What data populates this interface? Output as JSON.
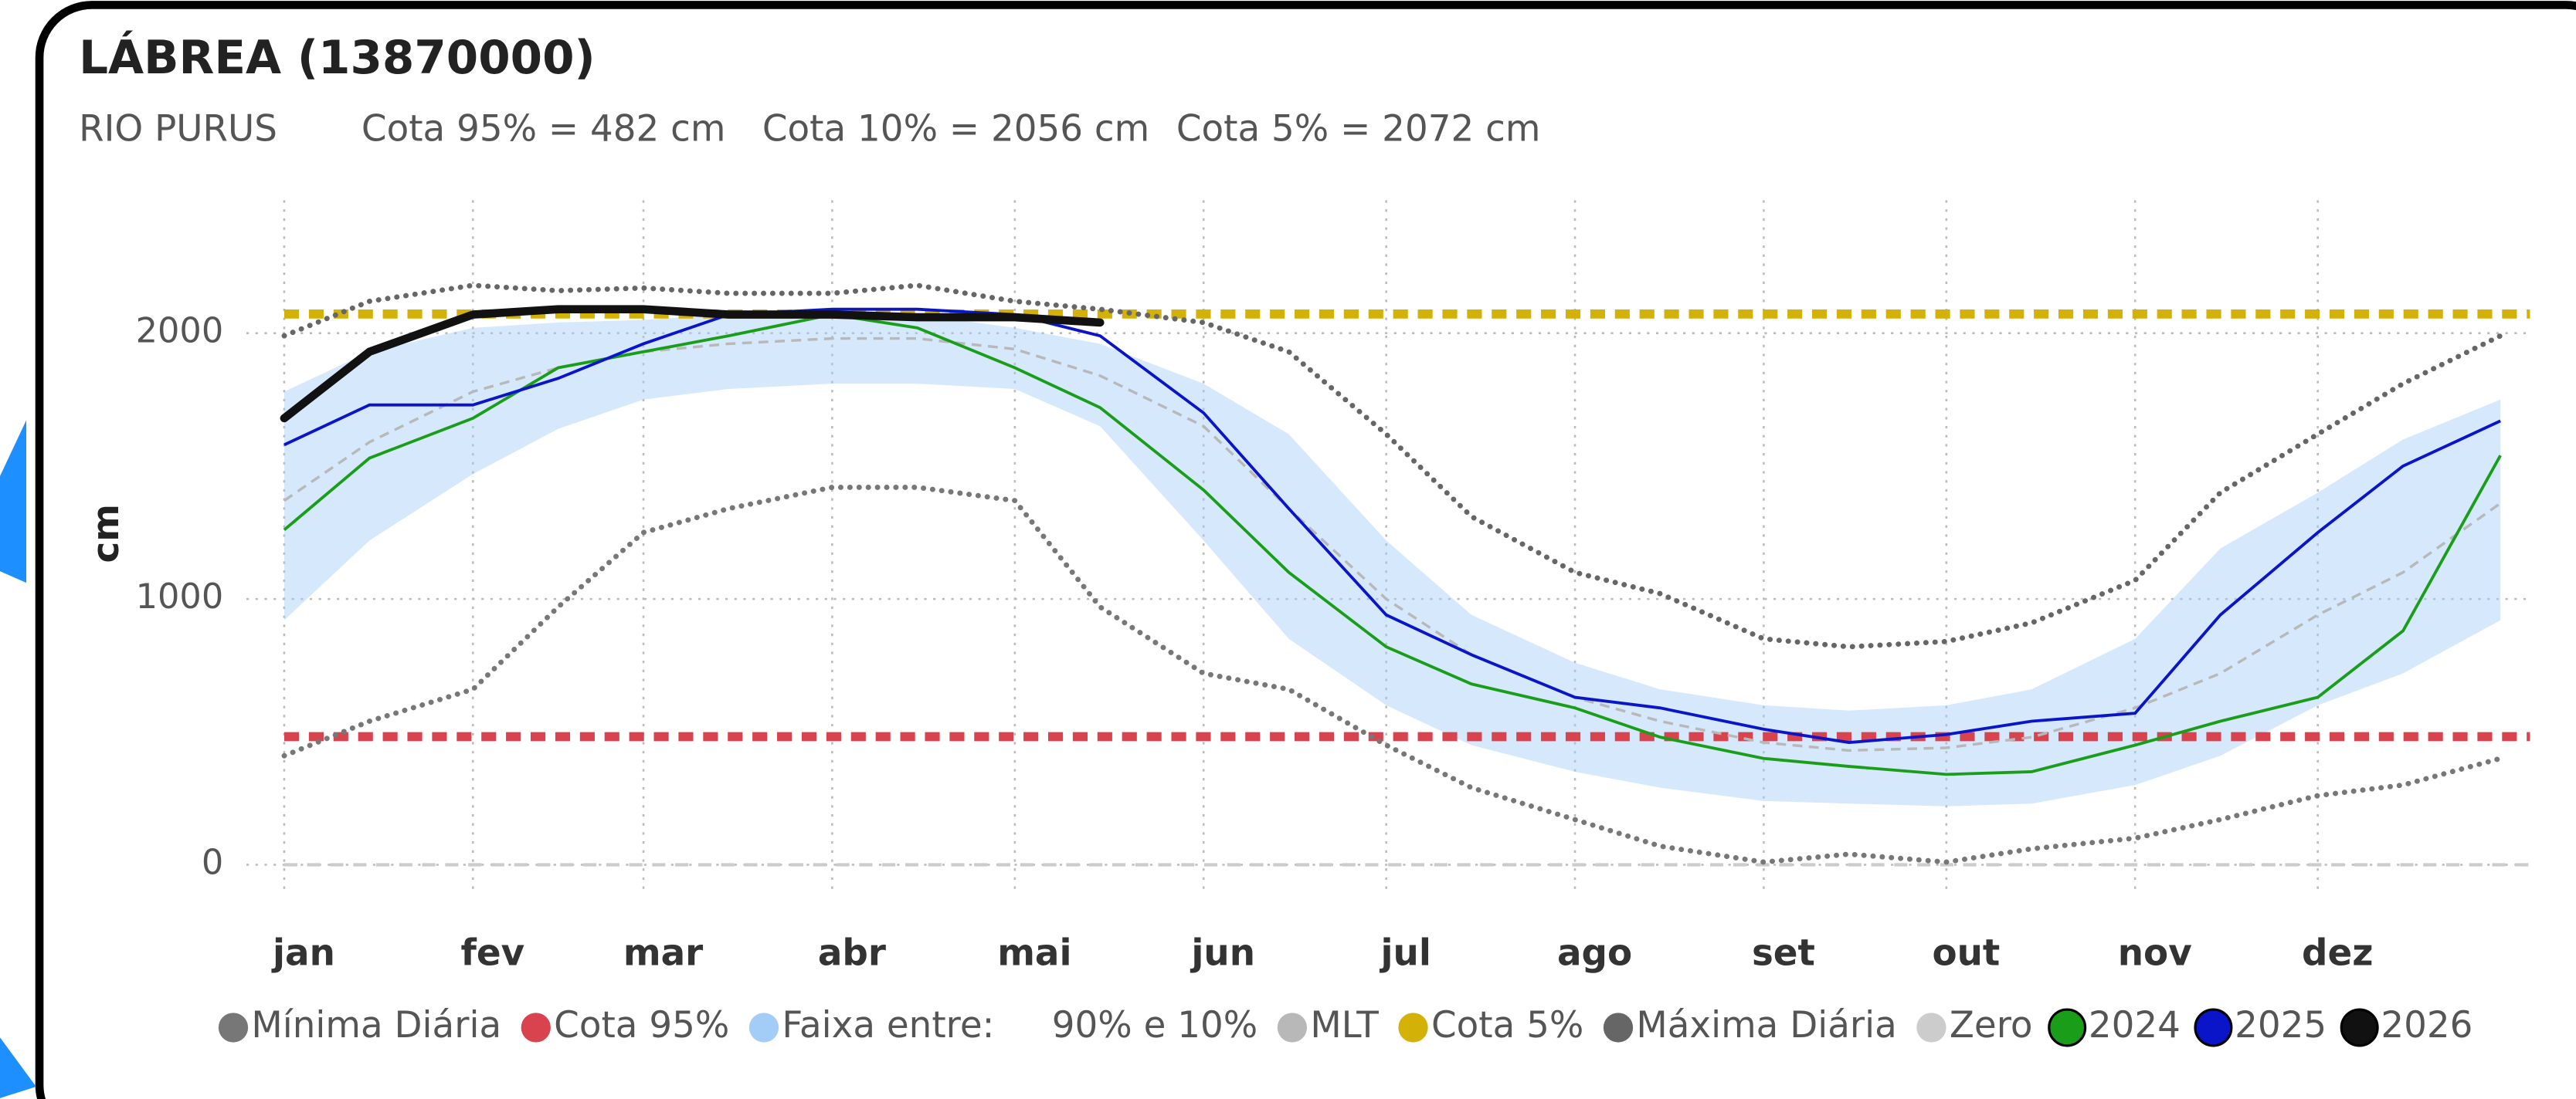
{
  "chart_data": {
    "type": "line",
    "title": "LÁBREA (13870000)",
    "subtitle": [
      "RIO PURUS",
      "Cota 95% = 482 cm",
      "Cota 10% = 2056 cm",
      "Cota 5% = 2072 cm"
    ],
    "ylabel": "cm",
    "x": [
      1,
      15,
      32,
      46,
      60,
      74,
      91,
      105,
      121,
      135,
      152,
      166,
      182,
      196,
      213,
      227,
      244,
      258,
      274,
      288,
      305,
      319,
      335,
      349,
      365
    ],
    "xlim": [
      1,
      365
    ],
    "xticks": [
      {
        "value": 1,
        "label": "jan"
      },
      {
        "value": 32,
        "label": "fev"
      },
      {
        "value": 60,
        "label": "mar"
      },
      {
        "value": 91,
        "label": "abr"
      },
      {
        "value": 121,
        "label": "mai"
      },
      {
        "value": 152,
        "label": "jun"
      },
      {
        "value": 182,
        "label": "jul"
      },
      {
        "value": 213,
        "label": "ago"
      },
      {
        "value": 244,
        "label": "set"
      },
      {
        "value": 274,
        "label": "out"
      },
      {
        "value": 305,
        "label": "nov"
      },
      {
        "value": 335,
        "label": "dez"
      }
    ],
    "ylim": [
      -100,
      2500
    ],
    "yticks": [
      0,
      1000,
      2000
    ],
    "grid": true,
    "legend": "bottom",
    "series": [
      {
        "name": "Mínima Diária",
        "color": "#777777",
        "style": "dotted",
        "values": [
          410,
          540,
          660,
          970,
          1250,
          1340,
          1420,
          1420,
          1370,
          970,
          720,
          660,
          450,
          290,
          170,
          70,
          10,
          40,
          10,
          60,
          100,
          170,
          260,
          300,
          400
        ]
      },
      {
        "name": "Cota 95%",
        "color": "#d9434e",
        "style": "constant",
        "value": 482
      },
      {
        "name": "Faixa entre:     90% e 10%",
        "color": "#a3cdf7",
        "style": "band",
        "values": [
          1780,
          1930,
          2020,
          2040,
          2050,
          2070,
          2090,
          2070,
          2020,
          1960,
          1810,
          1620,
          1220,
          940,
          760,
          660,
          600,
          580,
          600,
          660,
          850,
          1190,
          1400,
          1600,
          1750
        ],
        "lower": [
          920,
          1220,
          1470,
          1640,
          1750,
          1790,
          1810,
          1810,
          1790,
          1650,
          1220,
          850,
          600,
          450,
          350,
          290,
          240,
          230,
          220,
          230,
          300,
          410,
          600,
          720,
          920
        ]
      },
      {
        "name": "MLT",
        "color": "#b8b8b8",
        "style": "dashed",
        "values": [
          1370,
          1590,
          1780,
          1870,
          1930,
          1960,
          1980,
          1980,
          1940,
          1840,
          1650,
          1340,
          1000,
          790,
          630,
          540,
          460,
          430,
          440,
          480,
          590,
          720,
          940,
          1100,
          1360
        ]
      },
      {
        "name": "Cota 5%",
        "color": "#d4b106",
        "style": "constant",
        "value": 2072
      },
      {
        "name": "Máxima Diária",
        "color": "#666666",
        "style": "dotted",
        "values": [
          1990,
          2120,
          2180,
          2160,
          2170,
          2150,
          2150,
          2180,
          2120,
          2090,
          2040,
          1930,
          1620,
          1310,
          1100,
          1020,
          850,
          820,
          840,
          910,
          1070,
          1400,
          1620,
          1810,
          1990
        ]
      },
      {
        "name": "Zero",
        "color": "#cccccc",
        "style": "constant",
        "value": 0
      },
      {
        "name": "2024",
        "color": "#1a9e1a",
        "style": "solid",
        "values": [
          1260,
          1530,
          1680,
          1870,
          1930,
          1990,
          2070,
          2020,
          1870,
          1720,
          1410,
          1100,
          820,
          680,
          590,
          480,
          400,
          370,
          340,
          350,
          450,
          540,
          630,
          880,
          1540
        ]
      },
      {
        "name": "2025",
        "color": "#0a14c8",
        "style": "solid",
        "values": [
          1580,
          1730,
          1730,
          1830,
          1960,
          2070,
          2090,
          2090,
          2070,
          1990,
          1700,
          1340,
          940,
          790,
          630,
          590,
          510,
          460,
          490,
          540,
          570,
          940,
          1250,
          1500,
          1670
        ]
      },
      {
        "name": "2026",
        "color": "#111111",
        "style": "thick",
        "values": [
          1680,
          1930,
          2070,
          2090,
          2090,
          2070,
          2070,
          2060,
          2060,
          2040,
          null,
          null,
          null,
          null,
          null,
          null,
          null,
          null,
          null,
          null,
          null,
          null,
          null,
          null,
          null
        ]
      }
    ]
  }
}
